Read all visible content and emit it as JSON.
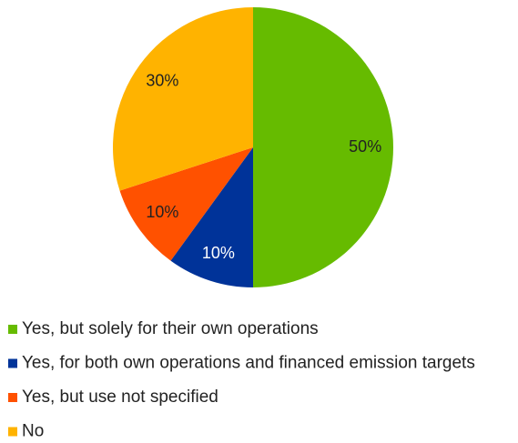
{
  "chart_data": {
    "type": "pie",
    "categories": [
      "Yes, but solely for their own operations",
      "Yes, for both own operations and financed emission targets",
      "Yes, but use not specified",
      "No"
    ],
    "values": [
      50,
      10,
      10,
      30
    ],
    "value_labels": [
      "50%",
      "10%",
      "10%",
      "30%"
    ],
    "colors": [
      "#66bb00",
      "#003399",
      "#ff5100",
      "#ffb300"
    ],
    "label_colors": [
      "#222222",
      "#ffffff",
      "#222222",
      "#222222"
    ]
  }
}
